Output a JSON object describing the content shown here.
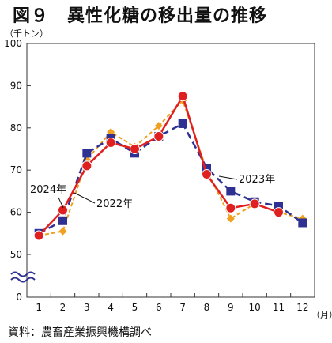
{
  "header": {
    "title": "図９　異性化糖の移出量の推移",
    "unit_y": "（千トン）",
    "unit_x": "（月）",
    "source": "資料：農畜産業振興機構調べ"
  },
  "chart_data": {
    "type": "line",
    "title": "図９　異性化糖の移出量の推移",
    "xlabel": "",
    "ylabel": "",
    "ylim": [
      50,
      100
    ],
    "axis_break": true,
    "y_ticks": [
      0,
      50,
      60,
      70,
      80,
      90,
      100
    ],
    "grid": false,
    "categories": [
      "1",
      "2",
      "3",
      "4",
      "5",
      "6",
      "7",
      "8",
      "9",
      "10",
      "11",
      "12"
    ],
    "series": [
      {
        "name": "2022年",
        "color": "#f0a020",
        "marker": "diamond",
        "line_style": "dashed",
        "values": [
          54.5,
          55.5,
          72.5,
          79.0,
          75.5,
          80.5,
          86.5,
          70.0,
          58.5,
          62.0,
          60.0,
          58.5
        ]
      },
      {
        "name": "2023年",
        "color": "#2e3192",
        "marker": "square",
        "line_style": "dashed",
        "values": [
          55.0,
          58.0,
          74.0,
          77.5,
          74.0,
          78.0,
          81.0,
          70.5,
          65.0,
          62.5,
          61.5,
          57.5
        ]
      },
      {
        "name": "2024年",
        "color": "#e02020",
        "marker": "circle",
        "line_style": "solid",
        "values": [
          54.5,
          60.5,
          71.0,
          76.5,
          75.0,
          78.0,
          87.5,
          69.0,
          61.0,
          62.0,
          60.0,
          null
        ]
      }
    ],
    "annotations": [
      "2024年",
      "2022年",
      "2023年"
    ]
  }
}
